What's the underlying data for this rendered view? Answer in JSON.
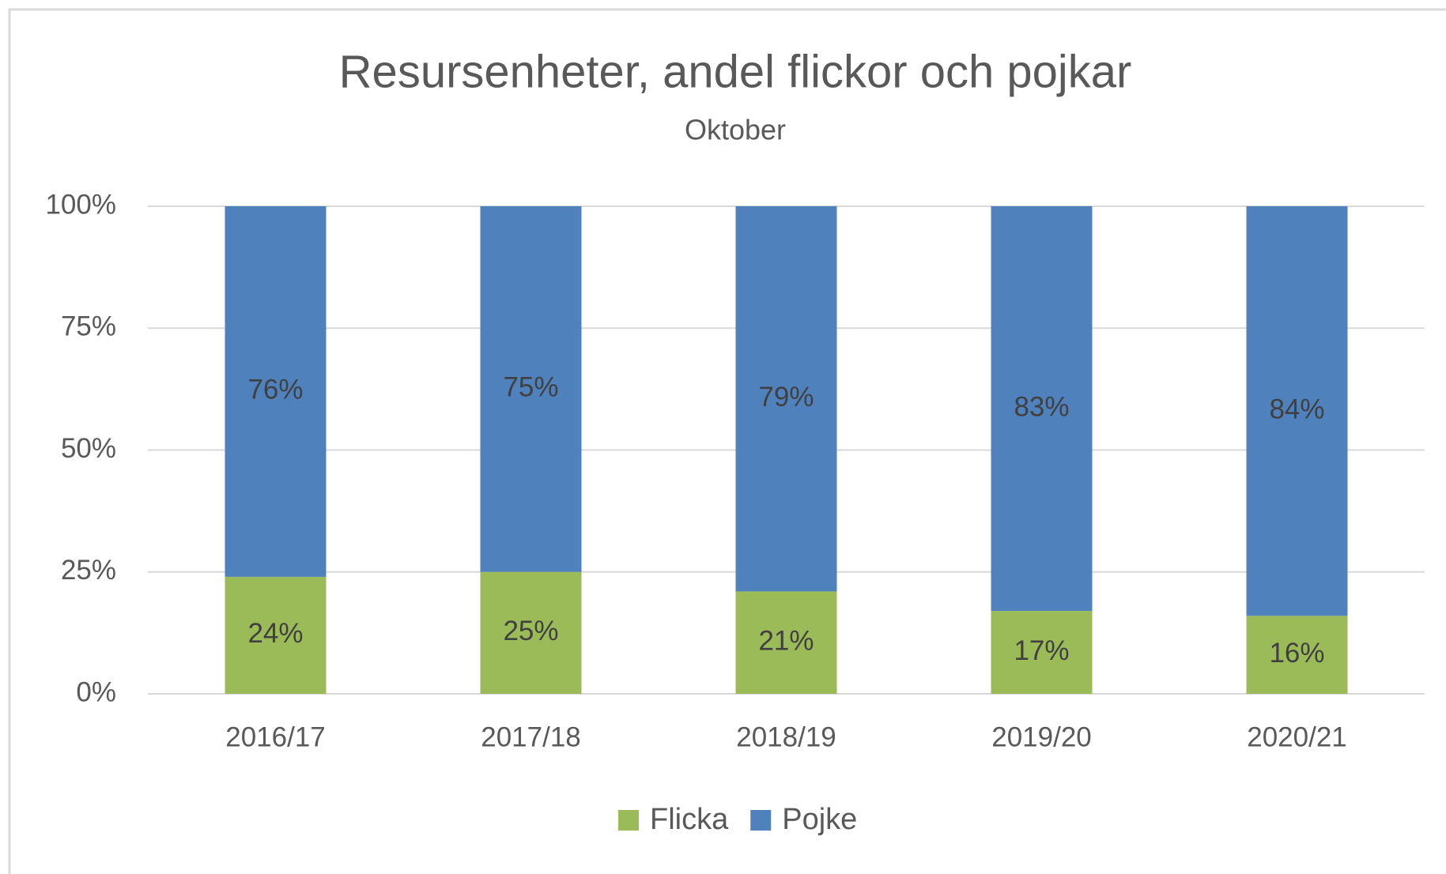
{
  "chart_data": {
    "type": "bar",
    "stacked": true,
    "title": "Resursenheter, andel flickor och pojkar",
    "subtitle": "Oktober",
    "categories": [
      "2016/17",
      "2017/18",
      "2018/19",
      "2019/20",
      "2020/21"
    ],
    "series": [
      {
        "name": "Flicka",
        "color": "#9bbb59",
        "values": [
          24,
          25,
          21,
          17,
          16
        ],
        "value_labels": [
          "24%",
          "25%",
          "21%",
          "17%",
          "16%"
        ]
      },
      {
        "name": "Pojke",
        "color": "#4f81bd",
        "values": [
          76,
          75,
          79,
          83,
          84
        ],
        "value_labels": [
          "76%",
          "75%",
          "79%",
          "83%",
          "84%"
        ]
      }
    ],
    "ylim": [
      0,
      100
    ],
    "yticks": [
      {
        "value": 0,
        "label": "0%"
      },
      {
        "value": 25,
        "label": "25%"
      },
      {
        "value": 50,
        "label": "50%"
      },
      {
        "value": 75,
        "label": "75%"
      },
      {
        "value": 100,
        "label": "100%"
      }
    ],
    "grid": true,
    "legend": "bottom"
  }
}
